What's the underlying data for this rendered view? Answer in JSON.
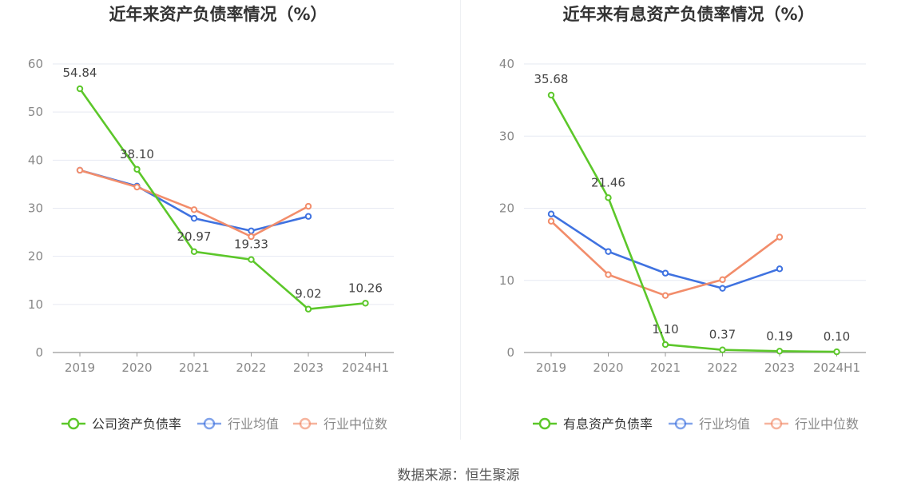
{
  "source_label": "数据来源：恒生聚源",
  "colors": {
    "company": "#5cc72a",
    "industry_avg": "#3f72e0",
    "industry_median": "#f28d6b",
    "grid": "#e6e9f2",
    "axis_text": "#888888",
    "title": "#333333",
    "label": "#444444"
  },
  "chart_data": [
    {
      "type": "line",
      "title": "近年来资产负债率情况（%）",
      "categories": [
        "2019",
        "2020",
        "2021",
        "2022",
        "2023",
        "2024H1"
      ],
      "ylim": [
        0,
        60
      ],
      "yticks": [
        0,
        10,
        20,
        30,
        40,
        50,
        60
      ],
      "grid": true,
      "legend_position": "bottom",
      "series": [
        {
          "name": "公司资产负债率",
          "color_key": "company",
          "values": [
            54.84,
            38.1,
            20.97,
            19.33,
            9.02,
            10.26
          ],
          "labels": [
            "54.84",
            "38.10",
            "20.97",
            "19.33",
            "9.02",
            "10.26"
          ]
        },
        {
          "name": "行业均值",
          "color_key": "industry_avg",
          "values": [
            37.9,
            34.6,
            27.9,
            25.3,
            28.3,
            null
          ]
        },
        {
          "name": "行业中位数",
          "color_key": "industry_median",
          "values": [
            37.9,
            34.4,
            29.7,
            24.1,
            30.4,
            null
          ]
        }
      ]
    },
    {
      "type": "line",
      "title": "近年来有息资产负债率情况（%）",
      "categories": [
        "2019",
        "2020",
        "2021",
        "2022",
        "2023",
        "2024H1"
      ],
      "ylim": [
        0,
        40
      ],
      "yticks": [
        0,
        10,
        20,
        30,
        40
      ],
      "grid": true,
      "legend_position": "bottom",
      "series": [
        {
          "name": "有息资产负债率",
          "color_key": "company",
          "values": [
            35.68,
            21.46,
            1.1,
            0.37,
            0.19,
            0.1
          ],
          "labels": [
            "35.68",
            "21.46",
            "1.10",
            "0.37",
            "0.19",
            "0.10"
          ]
        },
        {
          "name": "行业均值",
          "color_key": "industry_avg",
          "values": [
            19.2,
            14.0,
            11.0,
            8.9,
            11.6,
            null
          ]
        },
        {
          "name": "行业中位数",
          "color_key": "industry_median",
          "values": [
            18.2,
            10.8,
            7.9,
            10.1,
            16.0,
            null
          ]
        }
      ]
    }
  ]
}
